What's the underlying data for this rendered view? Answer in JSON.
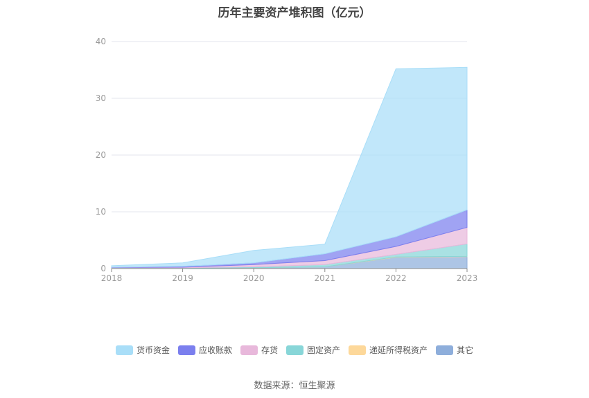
{
  "chart_data": {
    "type": "area",
    "stacked": true,
    "title": "历年主要资产堆积图（亿元）",
    "categories": [
      "2018",
      "2019",
      "2020",
      "2021",
      "2022",
      "2023"
    ],
    "yticks": [
      "0",
      "10",
      "20",
      "30",
      "40"
    ],
    "ylim": [
      0,
      40
    ],
    "grid": true,
    "legend_position": "bottom",
    "series": [
      {
        "name": "其它",
        "color": "#8eaedb",
        "values": [
          0.1,
          0.1,
          0.15,
          0.3,
          2.0,
          2.1
        ]
      },
      {
        "name": "递延所得税资产",
        "color": "#fdd89a",
        "values": [
          0.0,
          0.0,
          0.0,
          0.0,
          0.05,
          0.05
        ]
      },
      {
        "name": "固定资产",
        "color": "#88d6d8",
        "values": [
          0.05,
          0.05,
          0.15,
          0.4,
          0.45,
          2.2
        ]
      },
      {
        "name": "存货",
        "color": "#e8b8db",
        "values": [
          0.05,
          0.1,
          0.4,
          0.7,
          1.4,
          2.9
        ]
      },
      {
        "name": "应收账款",
        "color": "#7b7fee",
        "values": [
          0.05,
          0.15,
          0.3,
          1.2,
          1.7,
          3.1
        ]
      },
      {
        "name": "货币资金",
        "color": "#a9def8",
        "values": [
          0.25,
          0.6,
          2.2,
          1.7,
          29.6,
          25.1
        ]
      }
    ]
  },
  "legend_order": [
    "货币资金",
    "应收账款",
    "存货",
    "固定资产",
    "递延所得税资产",
    "其它"
  ],
  "source": "数据来源：恒生聚源"
}
